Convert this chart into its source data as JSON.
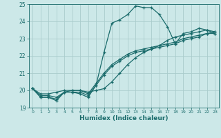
{
  "xlabel": "Humidex (Indice chaleur)",
  "xlim": [
    -0.5,
    23.5
  ],
  "ylim": [
    19,
    25
  ],
  "yticks": [
    19,
    20,
    21,
    22,
    23,
    24,
    25
  ],
  "xticks": [
    0,
    1,
    2,
    3,
    4,
    5,
    6,
    7,
    8,
    9,
    10,
    11,
    12,
    13,
    14,
    15,
    16,
    17,
    18,
    19,
    20,
    21,
    22,
    23
  ],
  "bg_color": "#cce8e8",
  "grid_color": "#aacccc",
  "line_color": "#1a6b6b",
  "line_width": 0.9,
  "marker": "+",
  "marker_size": 3.5,
  "markeredgewidth": 0.9,
  "series": [
    [
      20.1,
      19.6,
      19.6,
      19.4,
      19.9,
      19.9,
      19.8,
      19.6,
      20.3,
      22.2,
      23.9,
      24.1,
      24.4,
      24.9,
      24.8,
      24.8,
      24.4,
      23.7,
      22.7,
      23.3,
      23.4,
      23.6,
      23.5,
      23.3
    ],
    [
      20.1,
      19.6,
      19.6,
      19.5,
      19.9,
      19.9,
      19.9,
      19.7,
      20.3,
      20.9,
      21.4,
      21.7,
      22.0,
      22.2,
      22.3,
      22.4,
      22.5,
      22.6,
      22.7,
      22.9,
      23.0,
      23.1,
      23.3,
      23.3
    ],
    [
      20.1,
      19.7,
      19.7,
      19.6,
      19.9,
      20.0,
      20.0,
      19.8,
      20.4,
      21.0,
      21.5,
      21.8,
      22.1,
      22.3,
      22.4,
      22.5,
      22.6,
      22.7,
      22.8,
      23.0,
      23.1,
      23.2,
      23.3,
      23.4
    ],
    [
      20.1,
      19.8,
      19.8,
      19.9,
      20.0,
      20.0,
      20.0,
      19.9,
      20.0,
      20.1,
      20.5,
      21.0,
      21.5,
      21.9,
      22.2,
      22.4,
      22.6,
      22.9,
      23.1,
      23.2,
      23.3,
      23.4,
      23.5,
      23.4
    ]
  ]
}
